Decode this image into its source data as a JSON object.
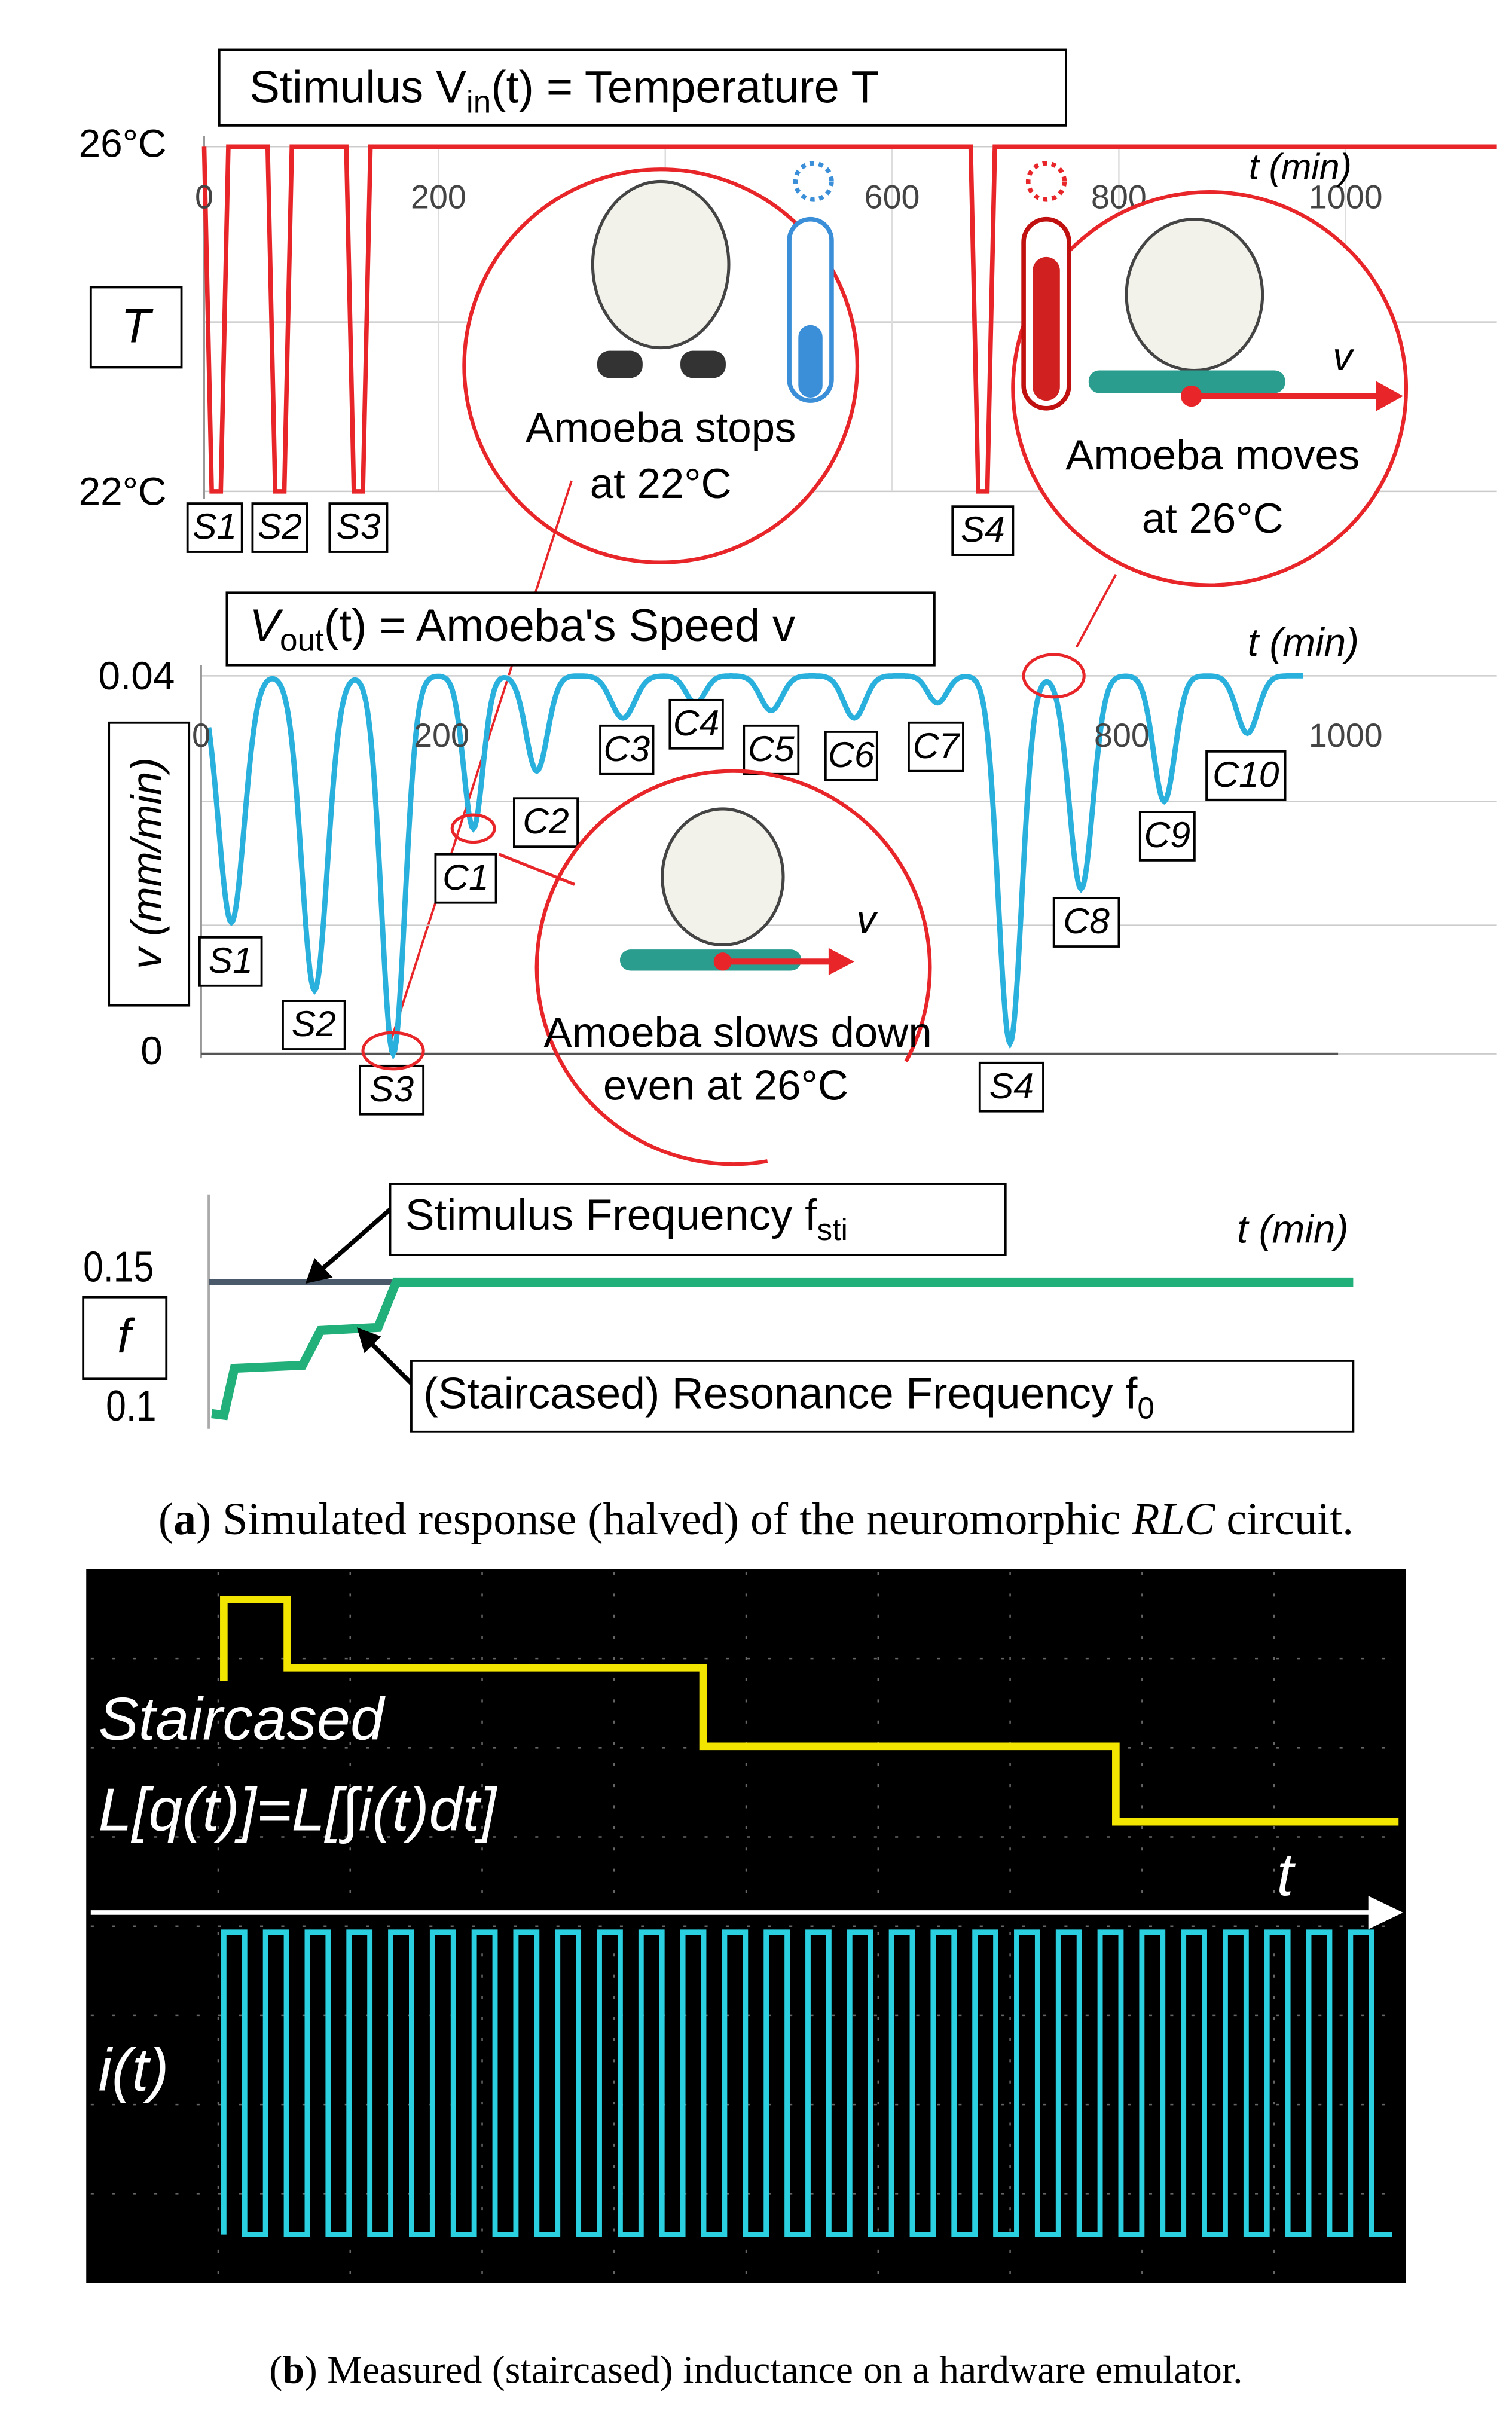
{
  "panel_a": {
    "temperature": {
      "title": [
        "Stimulus V",
        "in",
        "(t) = Temperature T"
      ],
      "y_label": "T",
      "y_ticks": [
        "26°C",
        "22°C"
      ],
      "x_ticks": [
        "0",
        "200",
        "600",
        "800",
        "1000"
      ],
      "x_label": "t (min)",
      "dip_labels": [
        "S1",
        "S2",
        "S3",
        "S4"
      ],
      "cold_bubble": [
        "Amoeba stops",
        "at 22°C"
      ],
      "hot_bubble": [
        "Amoeba moves",
        "at 26°C"
      ],
      "hot_speed": "v"
    },
    "speed": {
      "title": [
        "V",
        "out",
        "(t) = Amoeba's Speed v"
      ],
      "y_label": "v (mm/min)",
      "y_ticks": [
        "0.04",
        "0"
      ],
      "x_ticks": [
        "0",
        "200",
        "800",
        "1000"
      ],
      "x_label": "t (min)",
      "dip_labels": [
        "S1",
        "S2",
        "S3",
        "C1",
        "C2",
        "C3",
        "C4",
        "C5",
        "C6",
        "C7",
        "S4",
        "C8",
        "C9",
        "C10"
      ],
      "bubble": [
        "Amoeba slows down",
        "even at 26°C"
      ],
      "bubble_speed": "v"
    },
    "frequency": {
      "y_label": "f",
      "y_ticks": [
        "0.15",
        "0.1"
      ],
      "x_label": "t (min)",
      "stimulus": [
        "Stimulus Frequency f",
        "sti"
      ],
      "resonance": [
        "(Staircased) Resonance Frequency f",
        "0"
      ]
    },
    "caption": [
      "(",
      "a",
      ") Simulated response (halved) of the neuromorphic ",
      "RLC",
      " circuit."
    ]
  },
  "panel_b": {
    "staircase_label": [
      "Staircased",
      "L[q(t)]=L[∫i(t)dt]"
    ],
    "time_label": "t",
    "current_label": "i(t)",
    "caption": [
      "(",
      "b",
      ") Measured (staircased) inductance on a hardware emulator."
    ]
  }
}
